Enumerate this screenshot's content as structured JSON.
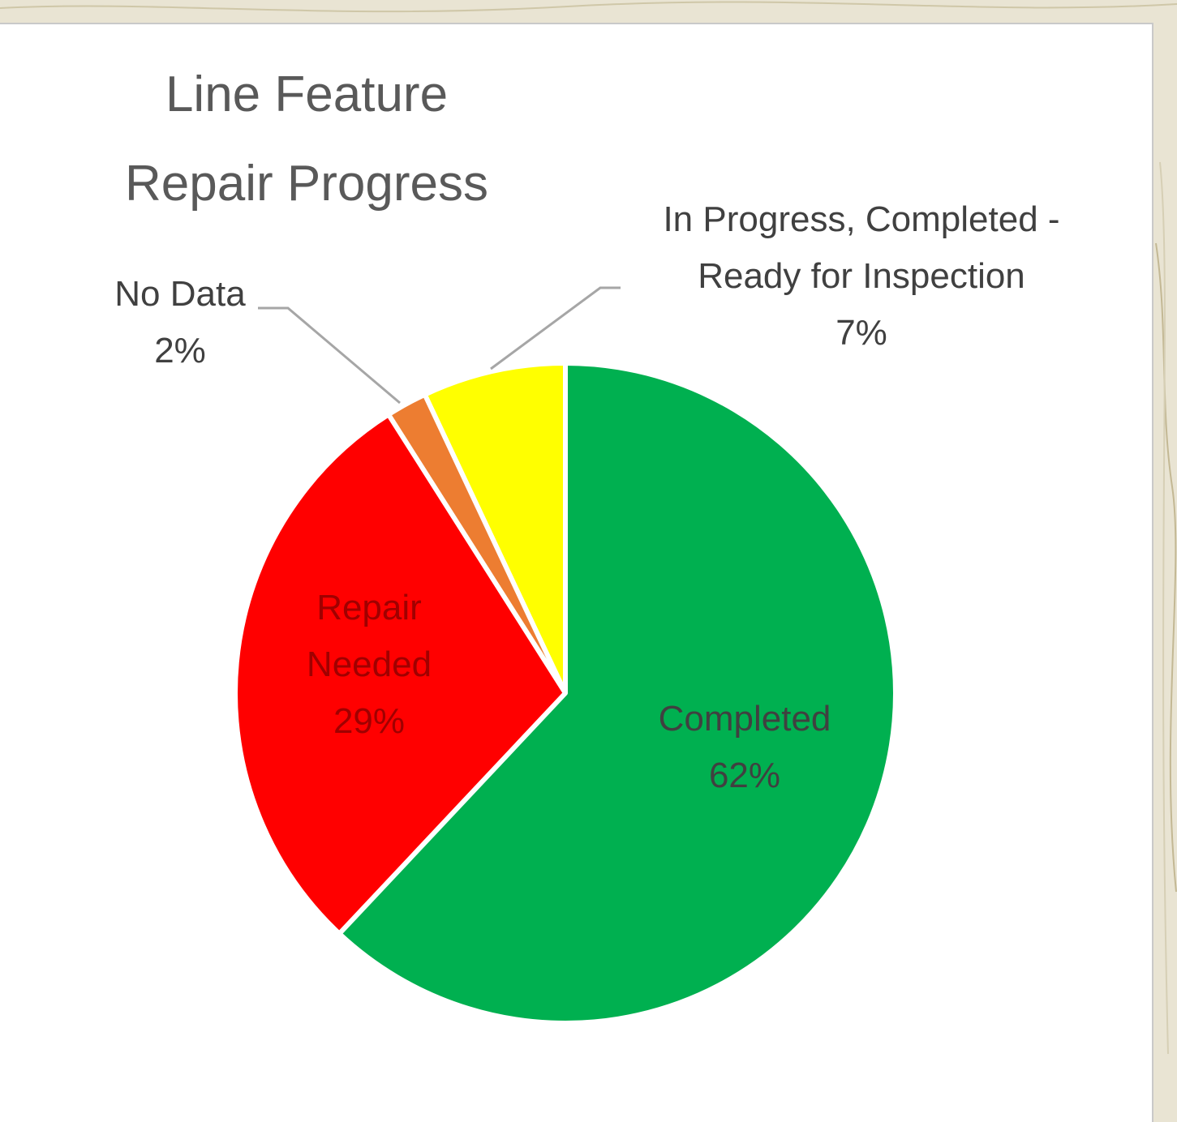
{
  "chart_data": {
    "type": "pie",
    "title": "Line Feature Repair Progress",
    "categories": [
      "Completed",
      "Repair Needed",
      "No Data",
      "In Progress, Completed - Ready for Inspection"
    ],
    "values": [
      62,
      29,
      2,
      7
    ],
    "value_labels": [
      "62%",
      "29%",
      "2%",
      "7%"
    ],
    "colors": [
      "#00b050",
      "#ff0000",
      "#ed7d31",
      "#ffff00"
    ]
  }
}
